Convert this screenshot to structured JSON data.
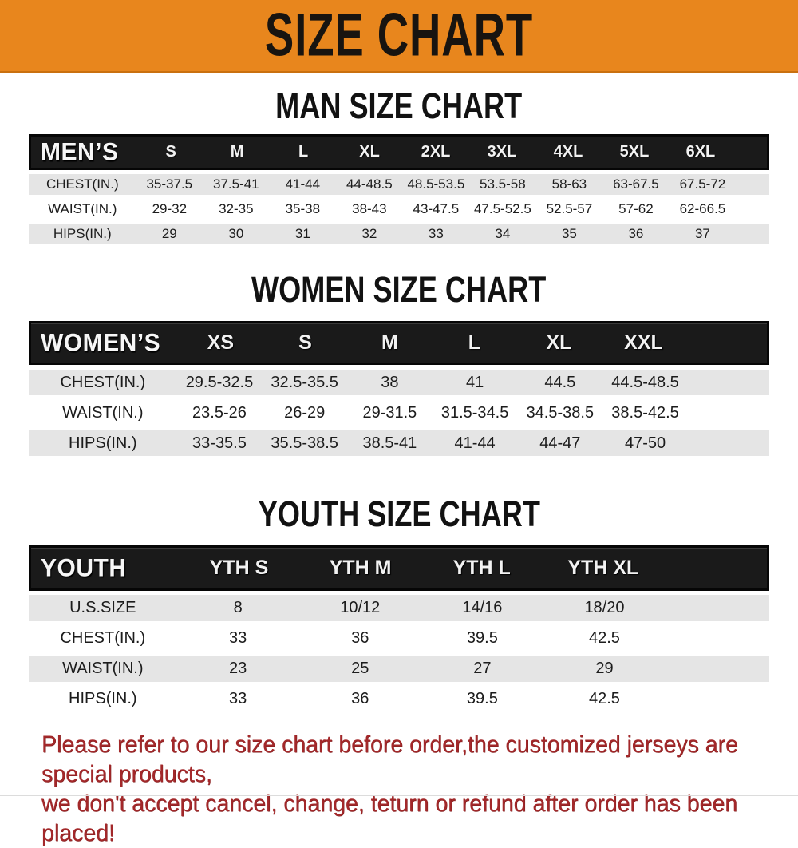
{
  "banner": {
    "title": "SIZE CHART",
    "bg_color": "#E8861D",
    "text_color": "#1a1a1a"
  },
  "colors": {
    "table_header_bg": "#1a1a1a",
    "row_alt_gray": "#e5e5e5",
    "row_white": "#ffffff",
    "disclaimer_red": "#a3282a"
  },
  "sections": [
    {
      "title": "MAN SIZE CHART",
      "table_label": "MEN’S",
      "cols": [
        "S",
        "M",
        "L",
        "XL",
        "2XL",
        "3XL",
        "4XL",
        "5XL",
        "6XL"
      ],
      "rows": [
        {
          "label": "CHEST(IN.)",
          "values": [
            "35-37.5",
            "37.5-41",
            "41-44",
            "44-48.5",
            "48.5-53.5",
            "53.5-58",
            "58-63",
            "63-67.5",
            "67.5-72"
          ]
        },
        {
          "label": "WAIST(IN.)",
          "values": [
            "29-32",
            "32-35",
            "35-38",
            "38-43",
            "43-47.5",
            "47.5-52.5",
            "52.5-57",
            "57-62",
            "62-66.5"
          ]
        },
        {
          "label": "HIPS(IN.)",
          "values": [
            "29",
            "30",
            "31",
            "32",
            "33",
            "34",
            "35",
            "36",
            "37"
          ]
        }
      ]
    },
    {
      "title": "WOMEN SIZE CHART",
      "table_label": "WOMEN’S",
      "cols": [
        "XS",
        "S",
        "M",
        "L",
        "XL",
        "XXL"
      ],
      "rows": [
        {
          "label": "CHEST(IN.)",
          "values": [
            "29.5-32.5",
            "32.5-35.5",
            "38",
            "41",
            "44.5",
            "44.5-48.5"
          ]
        },
        {
          "label": "WAIST(IN.)",
          "values": [
            "23.5-26",
            "26-29",
            "29-31.5",
            "31.5-34.5",
            "34.5-38.5",
            "38.5-42.5"
          ]
        },
        {
          "label": "HIPS(IN.)",
          "values": [
            "33-35.5",
            "35.5-38.5",
            "38.5-41",
            "41-44",
            "44-47",
            "47-50"
          ]
        }
      ]
    },
    {
      "title": "YOUTH SIZE CHART",
      "table_label": "YOUTH",
      "cols": [
        "YTH S",
        "YTH M",
        "YTH L",
        "YTH XL"
      ],
      "rows": [
        {
          "label": "U.S.SIZE",
          "values": [
            "8",
            "10/12",
            "14/16",
            "18/20"
          ]
        },
        {
          "label": "CHEST(IN.)",
          "values": [
            "33",
            "36",
            "39.5",
            "42.5"
          ]
        },
        {
          "label": "WAIST(IN.)",
          "values": [
            "23",
            "25",
            "27",
            "29"
          ]
        },
        {
          "label": "HIPS(IN.)",
          "values": [
            "33",
            "36",
            "39.5",
            "42.5"
          ]
        }
      ]
    }
  ],
  "disclaimer": {
    "line1": "Please refer to our size chart before order,the customized jerseys are special products,",
    "line2": "we don't accept cancel, change, teturn or refund after order has been placed!"
  }
}
